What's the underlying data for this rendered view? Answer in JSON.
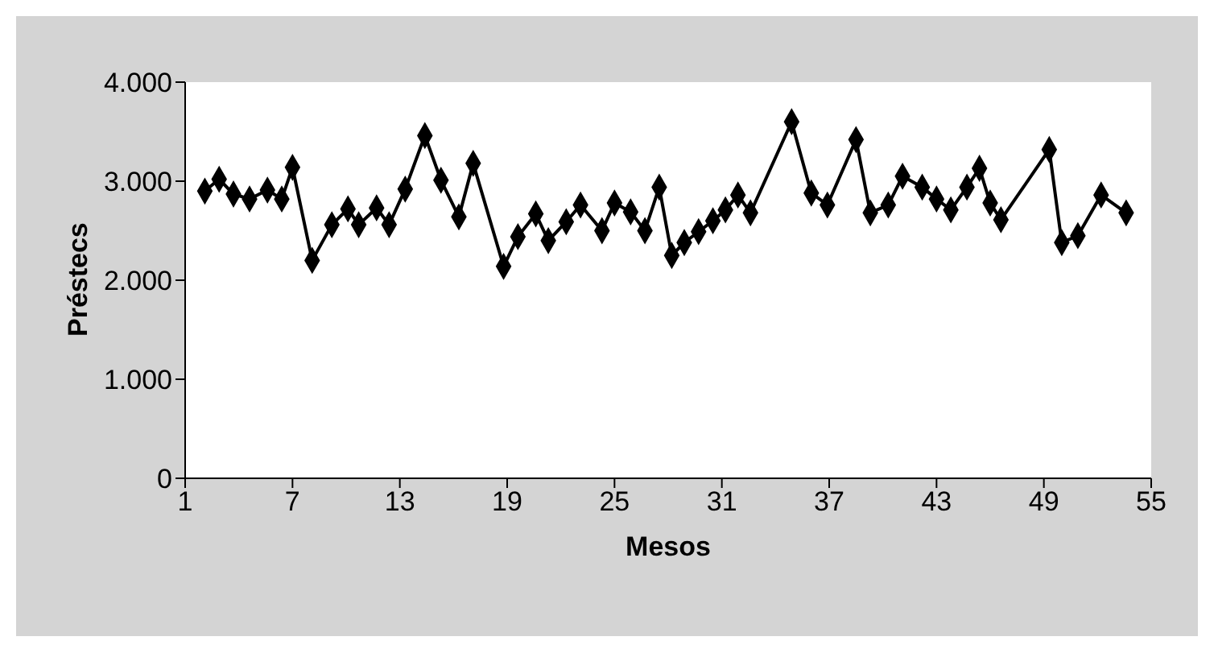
{
  "chart_data": {
    "type": "line",
    "xlabel": "Mesos",
    "ylabel": "Préstecs",
    "marker": "diamond",
    "grid": false,
    "xlim": [
      1,
      55
    ],
    "xticks": [
      1,
      7,
      13,
      19,
      25,
      31,
      37,
      43,
      49,
      55
    ],
    "ylim": [
      0,
      4000
    ],
    "yticks": [
      {
        "value": 0,
        "label": "0"
      },
      {
        "value": 1000,
        "label": "1.000"
      },
      {
        "value": 2000,
        "label": "2.000"
      },
      {
        "value": 3000,
        "label": "3.000"
      },
      {
        "value": 4000,
        "label": "4.000"
      }
    ],
    "x": [
      2.1,
      2.9,
      3.7,
      4.6,
      5.6,
      6.4,
      7.0,
      8.1,
      9.2,
      10.1,
      10.7,
      11.7,
      12.4,
      13.3,
      14.4,
      15.3,
      16.3,
      17.1,
      18.8,
      19.6,
      20.6,
      21.3,
      22.3,
      23.1,
      24.3,
      25.0,
      25.9,
      26.7,
      27.5,
      28.2,
      28.9,
      29.7,
      30.5,
      31.2,
      31.9,
      32.6,
      34.9,
      36.0,
      36.9,
      38.5,
      39.3,
      40.3,
      41.1,
      42.2,
      43.0,
      43.8,
      44.7,
      45.4,
      46.0,
      46.6,
      49.3,
      50.0,
      50.9,
      52.2,
      53.6
    ],
    "series": [
      {
        "color": "#000000",
        "values": [
          2900,
          3020,
          2870,
          2820,
          2910,
          2820,
          3140,
          2200,
          2560,
          2720,
          2560,
          2730,
          2560,
          2920,
          3460,
          3010,
          2640,
          3180,
          2140,
          2440,
          2670,
          2400,
          2590,
          2760,
          2500,
          2780,
          2690,
          2500,
          2940,
          2250,
          2380,
          2490,
          2600,
          2710,
          2860,
          2680,
          3600,
          2880,
          2760,
          3420,
          2680,
          2760,
          3050,
          2940,
          2820,
          2710,
          2940,
          3130,
          2780,
          2610,
          3320,
          2380,
          2450,
          2860,
          2680
        ]
      }
    ]
  }
}
